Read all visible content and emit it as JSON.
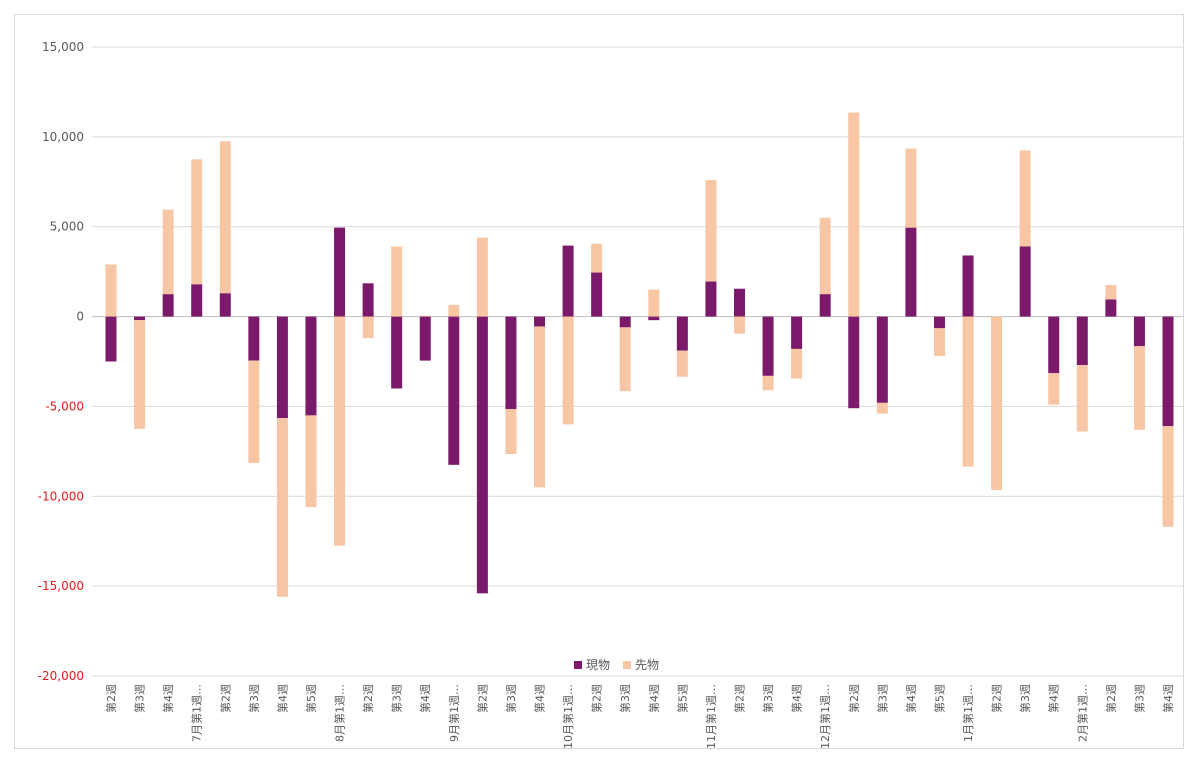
{
  "chart_data": {
    "type": "bar",
    "stacked": true,
    "categories": [
      "第2週",
      "第3週",
      "第4週",
      "7月第1週…",
      "第2週",
      "第3週",
      "第4週",
      "第5週",
      "8月第1週…",
      "第2週",
      "第3週",
      "第4週",
      "9月第1週…",
      "第2週",
      "第3週",
      "第4週",
      "10月第1週…",
      "第2週",
      "第3週",
      "第4週",
      "第5週",
      "11月第1週…",
      "第2週",
      "第3週",
      "第4週",
      "12月第1週…",
      "第2週",
      "第3週",
      "第4週",
      "第5週",
      "1月第1週…",
      "第2週",
      "第3週",
      "第4週",
      "2月第1週…",
      "第2週",
      "第3週",
      "第4週"
    ],
    "series": [
      {
        "name": "現物",
        "color": "#7b1a6b",
        "values": [
          -2500,
          -200,
          1250,
          1800,
          1300,
          -2450,
          -5650,
          -5500,
          4950,
          1850,
          -4000,
          -2450,
          -8250,
          -15400,
          -5150,
          -550,
          3950,
          2450,
          -600,
          -200,
          -1900,
          1950,
          1550,
          -3300,
          -1800,
          1250,
          -5100,
          -4800,
          4950,
          -650,
          3400,
          0,
          3900,
          -3150,
          -2700,
          950,
          -1650,
          -6100
        ]
      },
      {
        "name": "先物",
        "color": "#f7c6a5",
        "values": [
          2900,
          -6050,
          4700,
          6950,
          8450,
          -5700,
          -9950,
          -5100,
          -12750,
          -1200,
          3900,
          50,
          650,
          4400,
          -2500,
          -8950,
          -6000,
          1600,
          -3550,
          1500,
          -1450,
          5650,
          -950,
          -800,
          -1650,
          4250,
          11350,
          -600,
          4400,
          -1550,
          -8350,
          -9650,
          5350,
          -1750,
          -3700,
          800,
          -4650,
          -5600
        ]
      }
    ],
    "y_ticks": [
      "15,000",
      "10,000",
      "5,000",
      "0",
      "-5,000",
      "-10,000",
      "-15,000",
      "-20,000"
    ],
    "ylim": [
      -20000,
      15000
    ],
    "negative_tick_color": "#e31a1c",
    "positive_tick_color": "#595959",
    "gridlines": true,
    "legend_position": "bottom"
  }
}
